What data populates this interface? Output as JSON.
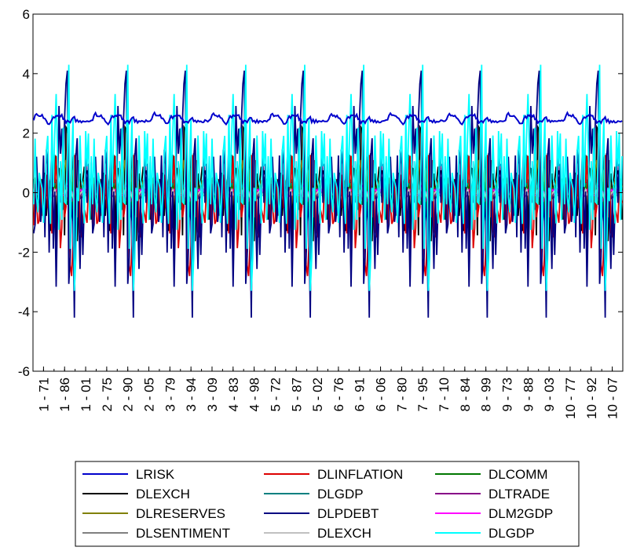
{
  "chart_data": {
    "type": "line",
    "title": "",
    "xlabel": "",
    "ylabel": "",
    "ylim": [
      -6,
      6
    ],
    "yticks": [
      6,
      4,
      2,
      0,
      -2,
      -4,
      -6
    ],
    "xtick_labels": [
      "1 - 71",
      "1 - 86",
      "1 - 01",
      "2 - 75",
      "2 - 90",
      "2 - 05",
      "3 - 79",
      "3 - 94",
      "3 - 09",
      "4 - 83",
      "4 - 98",
      "5 - 72",
      "5 - 87",
      "5 - 02",
      "6 - 76",
      "6 - 91",
      "6 - 06",
      "7 - 80",
      "7 - 95",
      "7 - 10",
      "8 - 84",
      "8 - 99",
      "9 - 73",
      "9 - 88",
      "9 - 03",
      "10 - 77",
      "10 - 92",
      "10 - 07"
    ],
    "n_obs": 420,
    "panels": 10,
    "grid": false,
    "legend_position": "bottom",
    "series": [
      {
        "name": "LRISK",
        "color": "#0000cc",
        "level": 2.5,
        "spread": 0.25
      },
      {
        "name": "DLINFLATION",
        "color": "#dd0000",
        "min": -2.8,
        "max": 2.0
      },
      {
        "name": "DLCOMM",
        "color": "#007700",
        "min": -0.5,
        "max": 0.5
      },
      {
        "name": "DLEXCH",
        "color": "#000000",
        "min": -2.6,
        "max": 2.2
      },
      {
        "name": "DLGDP",
        "color": "#008080",
        "min": -0.6,
        "max": 0.6
      },
      {
        "name": "DLTRADE",
        "color": "#880088",
        "min": -0.3,
        "max": 0.3
      },
      {
        "name": "DLRESERVES",
        "color": "#808000",
        "min": -0.6,
        "max": 1.1
      },
      {
        "name": "DLPDEBT",
        "color": "#000080",
        "min": -4.2,
        "max": 4.1
      },
      {
        "name": "DLM2GDP",
        "color": "#ff00ff",
        "min": -0.2,
        "max": 0.25
      },
      {
        "name": "DLSENTIMENT",
        "color": "#808080",
        "min": -0.1,
        "max": 0.1
      },
      {
        "name": "DLEXCH",
        "color": "#c0c0c0",
        "min": -0.15,
        "max": 0.15
      },
      {
        "name": "DLGDP",
        "color": "#00ffff",
        "min": -3.3,
        "max": 4.3
      }
    ]
  }
}
